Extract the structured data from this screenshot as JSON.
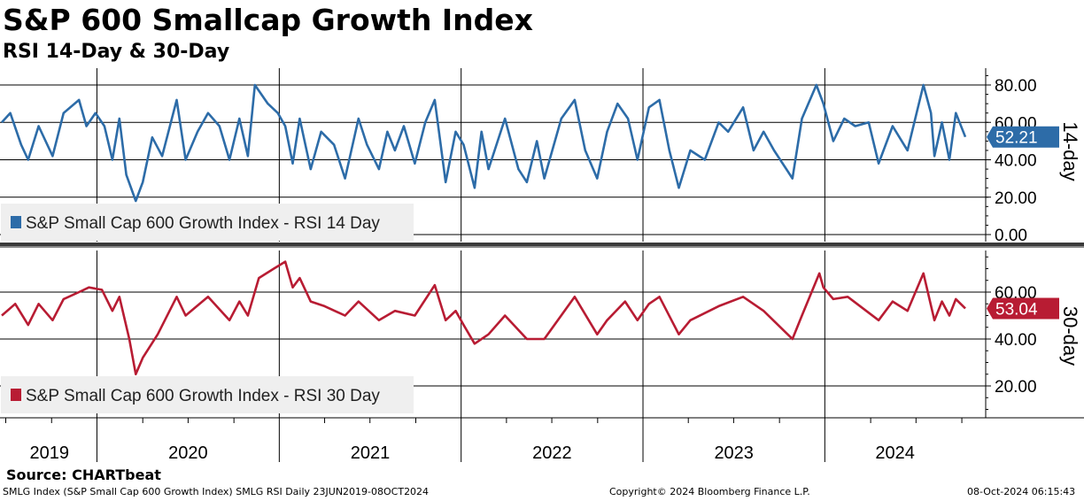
{
  "title": "S&P 600 Smallcap Growth Index",
  "subtitle": "RSI 14-Day & 30-Day",
  "source": "Source: CHARTbeat",
  "footer": {
    "left": "SMLG Index (S&P Small Cap 600 Growth Index) SMLG RSI  Daily 23JUN2019-08OCT2024",
    "center": "Copyright© 2024 Bloomberg Finance L.P.",
    "right": "08-Oct-2024 06:15:43"
  },
  "colors": {
    "rsi14": "#2d6ca8",
    "rsi30": "#b81c33",
    "grid": "#000000"
  },
  "chart_data": [
    {
      "type": "line",
      "panel_label": "14-day",
      "legend": "S&P Small Cap 600 Growth Index - RSI 14 Day",
      "ylim": [
        0,
        82
      ],
      "yticks": [
        "80.00",
        "60.00",
        "40.00",
        "20.00",
        "0.00"
      ],
      "last_value": "52.21",
      "grid": true,
      "x_range": [
        "2019-06-23",
        "2024-10-08"
      ],
      "series": [
        {
          "values": [
            [
              "2019-06-23",
              60
            ],
            [
              "2019-07-10",
              65
            ],
            [
              "2019-08-01",
              48
            ],
            [
              "2019-08-15",
              40
            ],
            [
              "2019-09-05",
              58
            ],
            [
              "2019-10-03",
              42
            ],
            [
              "2019-10-25",
              65
            ],
            [
              "2019-11-25",
              72
            ],
            [
              "2019-12-10",
              58
            ],
            [
              "2019-12-28",
              65
            ],
            [
              "2020-01-15",
              58
            ],
            [
              "2020-01-31",
              40
            ],
            [
              "2020-02-14",
              62
            ],
            [
              "2020-02-28",
              32
            ],
            [
              "2020-03-18",
              18
            ],
            [
              "2020-04-01",
              28
            ],
            [
              "2020-04-20",
              52
            ],
            [
              "2020-05-10",
              42
            ],
            [
              "2020-06-08",
              72
            ],
            [
              "2020-06-26",
              40
            ],
            [
              "2020-07-20",
              55
            ],
            [
              "2020-08-10",
              65
            ],
            [
              "2020-09-02",
              58
            ],
            [
              "2020-09-22",
              40
            ],
            [
              "2020-10-12",
              62
            ],
            [
              "2020-10-29",
              42
            ],
            [
              "2020-11-12",
              80
            ],
            [
              "2020-12-08",
              70
            ],
            [
              "2020-12-28",
              65
            ],
            [
              "2021-01-12",
              58
            ],
            [
              "2021-01-27",
              38
            ],
            [
              "2021-02-10",
              62
            ],
            [
              "2021-03-04",
              35
            ],
            [
              "2021-03-25",
              55
            ],
            [
              "2021-04-20",
              48
            ],
            [
              "2021-05-12",
              30
            ],
            [
              "2021-06-08",
              62
            ],
            [
              "2021-06-25",
              48
            ],
            [
              "2021-07-19",
              35
            ],
            [
              "2021-08-05",
              55
            ],
            [
              "2021-08-20",
              45
            ],
            [
              "2021-09-07",
              58
            ],
            [
              "2021-09-29",
              38
            ],
            [
              "2021-10-20",
              60
            ],
            [
              "2021-11-08",
              72
            ],
            [
              "2021-11-30",
              28
            ],
            [
              "2021-12-20",
              55
            ],
            [
              "2022-01-05",
              48
            ],
            [
              "2022-01-27",
              25
            ],
            [
              "2022-02-10",
              55
            ],
            [
              "2022-02-24",
              35
            ],
            [
              "2022-03-29",
              62
            ],
            [
              "2022-04-25",
              35
            ],
            [
              "2022-05-12",
              28
            ],
            [
              "2022-06-01",
              50
            ],
            [
              "2022-06-16",
              30
            ],
            [
              "2022-07-20",
              62
            ],
            [
              "2022-08-16",
              72
            ],
            [
              "2022-09-06",
              45
            ],
            [
              "2022-09-30",
              30
            ],
            [
              "2022-10-20",
              55
            ],
            [
              "2022-11-10",
              70
            ],
            [
              "2022-12-01",
              62
            ],
            [
              "2022-12-20",
              40
            ],
            [
              "2023-01-12",
              68
            ],
            [
              "2023-02-02",
              72
            ],
            [
              "2023-02-22",
              45
            ],
            [
              "2023-03-13",
              25
            ],
            [
              "2023-04-05",
              45
            ],
            [
              "2023-05-04",
              40
            ],
            [
              "2023-06-01",
              60
            ],
            [
              "2023-06-20",
              55
            ],
            [
              "2023-07-20",
              68
            ],
            [
              "2023-08-10",
              45
            ],
            [
              "2023-08-30",
              55
            ],
            [
              "2023-09-20",
              45
            ],
            [
              "2023-10-27",
              30
            ],
            [
              "2023-11-15",
              62
            ],
            [
              "2023-12-14",
              80
            ],
            [
              "2023-12-28",
              70
            ],
            [
              "2024-01-17",
              50
            ],
            [
              "2024-02-08",
              62
            ],
            [
              "2024-03-01",
              58
            ],
            [
              "2024-03-28",
              60
            ],
            [
              "2024-04-17",
              38
            ],
            [
              "2024-05-15",
              58
            ],
            [
              "2024-06-14",
              45
            ],
            [
              "2024-07-16",
              80
            ],
            [
              "2024-07-31",
              65
            ],
            [
              "2024-08-07",
              42
            ],
            [
              "2024-08-22",
              60
            ],
            [
              "2024-09-06",
              40
            ],
            [
              "2024-09-19",
              65
            ],
            [
              "2024-10-08",
              52.21
            ]
          ]
        }
      ]
    },
    {
      "type": "line",
      "panel_label": "30-day",
      "legend": "S&P Small Cap 600 Growth Index - RSI 30 Day",
      "ylim": [
        8,
        76
      ],
      "yticks": [
        "60.00",
        "40.00",
        "20.00"
      ],
      "last_value": "53.04",
      "grid": true,
      "x_range": [
        "2019-06-23",
        "2024-10-08"
      ],
      "series": [
        {
          "values": [
            [
              "2019-06-23",
              50
            ],
            [
              "2019-07-20",
              55
            ],
            [
              "2019-08-15",
              46
            ],
            [
              "2019-09-05",
              55
            ],
            [
              "2019-10-03",
              48
            ],
            [
              "2019-10-25",
              57
            ],
            [
              "2019-11-25",
              60
            ],
            [
              "2019-12-15",
              62
            ],
            [
              "2020-01-10",
              61
            ],
            [
              "2020-01-31",
              52
            ],
            [
              "2020-02-14",
              58
            ],
            [
              "2020-03-05",
              40
            ],
            [
              "2020-03-18",
              25
            ],
            [
              "2020-04-01",
              32
            ],
            [
              "2020-05-01",
              42
            ],
            [
              "2020-06-08",
              58
            ],
            [
              "2020-06-26",
              50
            ],
            [
              "2020-08-10",
              58
            ],
            [
              "2020-09-22",
              48
            ],
            [
              "2020-10-12",
              56
            ],
            [
              "2020-10-29",
              50
            ],
            [
              "2020-11-20",
              66
            ],
            [
              "2020-12-20",
              70
            ],
            [
              "2021-01-12",
              73
            ],
            [
              "2021-01-27",
              62
            ],
            [
              "2021-02-10",
              66
            ],
            [
              "2021-03-04",
              56
            ],
            [
              "2021-04-01",
              54
            ],
            [
              "2021-05-12",
              50
            ],
            [
              "2021-06-08",
              56
            ],
            [
              "2021-07-19",
              48
            ],
            [
              "2021-08-20",
              52
            ],
            [
              "2021-09-29",
              50
            ],
            [
              "2021-11-08",
              63
            ],
            [
              "2021-11-30",
              48
            ],
            [
              "2021-12-20",
              52
            ],
            [
              "2022-01-05",
              46
            ],
            [
              "2022-01-27",
              38
            ],
            [
              "2022-02-24",
              42
            ],
            [
              "2022-03-29",
              50
            ],
            [
              "2022-05-12",
              40
            ],
            [
              "2022-06-16",
              40
            ],
            [
              "2022-08-16",
              58
            ],
            [
              "2022-09-30",
              42
            ],
            [
              "2022-10-20",
              48
            ],
            [
              "2022-11-25",
              56
            ],
            [
              "2022-12-20",
              48
            ],
            [
              "2023-01-12",
              55
            ],
            [
              "2023-02-02",
              58
            ],
            [
              "2023-03-13",
              42
            ],
            [
              "2023-04-05",
              48
            ],
            [
              "2023-06-01",
              54
            ],
            [
              "2023-07-20",
              58
            ],
            [
              "2023-08-30",
              52
            ],
            [
              "2023-10-27",
              40
            ],
            [
              "2023-11-15",
              50
            ],
            [
              "2023-12-20",
              68
            ],
            [
              "2023-12-28",
              62
            ],
            [
              "2024-01-17",
              57
            ],
            [
              "2024-02-15",
              58
            ],
            [
              "2024-04-17",
              48
            ],
            [
              "2024-05-15",
              56
            ],
            [
              "2024-06-14",
              52
            ],
            [
              "2024-07-16",
              68
            ],
            [
              "2024-08-07",
              48
            ],
            [
              "2024-08-22",
              56
            ],
            [
              "2024-09-06",
              50
            ],
            [
              "2024-09-19",
              57
            ],
            [
              "2024-10-08",
              53.04
            ]
          ]
        }
      ]
    }
  ],
  "x_axis": {
    "years": [
      "2019",
      "2020",
      "2021",
      "2022",
      "2023",
      "2024"
    ]
  }
}
